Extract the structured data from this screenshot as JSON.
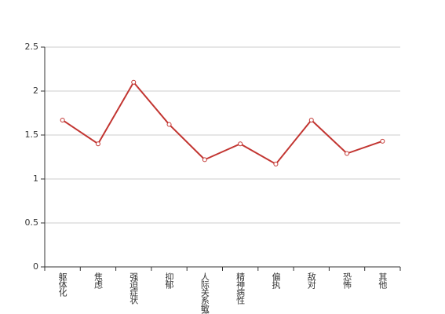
{
  "chart_data": {
    "type": "line",
    "categories": [
      "躯体化",
      "焦虑",
      "强迫症状",
      "抑郁",
      "人际关系敏感",
      "精神病性",
      "偏执",
      "敌对",
      "恐怖",
      "其他"
    ],
    "values": [
      1.67,
      1.4,
      2.1,
      1.62,
      1.22,
      1.4,
      1.17,
      1.67,
      1.29,
      1.43
    ],
    "color": "#c23531",
    "ylim": [
      0,
      2.5
    ],
    "yticks": [
      0,
      0.5,
      1,
      1.5,
      2,
      2.5
    ],
    "grid": true
  }
}
